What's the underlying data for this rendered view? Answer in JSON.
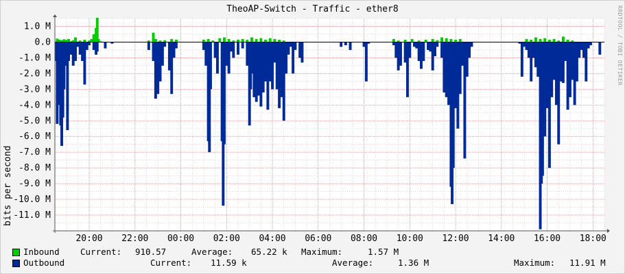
{
  "chart_data": {
    "type": "area",
    "title": "TheoAP-Switch - Traffic - ether8",
    "ylabel": "bits per second",
    "watermark": "RRDTOOL / TOBI OETIKER",
    "ylim": [
      -12000000,
      1500000
    ],
    "y_ticks": [
      {
        "value": 1000000,
        "label": "1.0 M"
      },
      {
        "value": 0,
        "label": "0.0"
      },
      {
        "value": -1000000,
        "label": "-1.0 M"
      },
      {
        "value": -2000000,
        "label": "-2.0 M"
      },
      {
        "value": -3000000,
        "label": "-3.0 M"
      },
      {
        "value": -4000000,
        "label": "-4.0 M"
      },
      {
        "value": -5000000,
        "label": "-5.0 M"
      },
      {
        "value": -6000000,
        "label": "-6.0 M"
      },
      {
        "value": -7000000,
        "label": "-7.0 M"
      },
      {
        "value": -8000000,
        "label": "-8.0 M"
      },
      {
        "value": -9000000,
        "label": "-9.0 M"
      },
      {
        "value": -10000000,
        "label": "-10.0 M"
      },
      {
        "value": -11000000,
        "label": "-11.0 M"
      }
    ],
    "x_range_hours": [
      18.5,
      42.5
    ],
    "x_ticks": [
      {
        "hour": 20,
        "label": "20:00"
      },
      {
        "hour": 22,
        "label": "22:00"
      },
      {
        "hour": 24,
        "label": "00:00"
      },
      {
        "hour": 26,
        "label": "02:00"
      },
      {
        "hour": 28,
        "label": "04:00"
      },
      {
        "hour": 30,
        "label": "06:00"
      },
      {
        "hour": 32,
        "label": "08:00"
      },
      {
        "hour": 34,
        "label": "10:00"
      },
      {
        "hour": 36,
        "label": "12:00"
      },
      {
        "hour": 38,
        "label": "14:00"
      },
      {
        "hour": 40,
        "label": "16:00"
      },
      {
        "hour": 42,
        "label": "18:00"
      }
    ],
    "grid": true,
    "series": [
      {
        "name": "Inbound",
        "color": "#00cc00",
        "points": [
          [
            18.6,
            0.22
          ],
          [
            18.7,
            0.15
          ],
          [
            18.8,
            0.12
          ],
          [
            18.9,
            0.18
          ],
          [
            19.0,
            0.14
          ],
          [
            19.1,
            0.2
          ],
          [
            19.2,
            0.05
          ],
          [
            19.3,
            0.12
          ],
          [
            19.4,
            0.3
          ],
          [
            19.6,
            0.1
          ],
          [
            19.8,
            0.15
          ],
          [
            20.0,
            0.1
          ],
          [
            20.1,
            0.2
          ],
          [
            20.2,
            0.5
          ],
          [
            20.3,
            0.9
          ],
          [
            20.35,
            1.55
          ],
          [
            20.4,
            0.2
          ],
          [
            20.5,
            0.05
          ],
          [
            22.6,
            0.1
          ],
          [
            22.8,
            0.6
          ],
          [
            22.9,
            0.2
          ],
          [
            23.1,
            0.1
          ],
          [
            23.3,
            0.12
          ],
          [
            23.6,
            0.2
          ],
          [
            23.8,
            0.15
          ],
          [
            25.0,
            0.15
          ],
          [
            25.2,
            0.2
          ],
          [
            25.4,
            0.1
          ],
          [
            25.7,
            0.25
          ],
          [
            25.9,
            0.3
          ],
          [
            26.1,
            0.2
          ],
          [
            26.3,
            0.1
          ],
          [
            26.5,
            0.15
          ],
          [
            26.7,
            0.2
          ],
          [
            26.9,
            0.15
          ],
          [
            27.1,
            0.3
          ],
          [
            27.3,
            0.2
          ],
          [
            27.5,
            0.25
          ],
          [
            27.7,
            0.15
          ],
          [
            27.9,
            0.25
          ],
          [
            28.1,
            0.2
          ],
          [
            28.3,
            0.15
          ],
          [
            28.5,
            0.1
          ],
          [
            33.3,
            0.2
          ],
          [
            33.5,
            0.1
          ],
          [
            33.8,
            0.15
          ],
          [
            34.1,
            0.2
          ],
          [
            34.4,
            0.1
          ],
          [
            34.7,
            0.15
          ],
          [
            35.0,
            0.2
          ],
          [
            35.2,
            0.12
          ],
          [
            35.4,
            0.3
          ],
          [
            35.6,
            0.25
          ],
          [
            35.8,
            0.2
          ],
          [
            36.0,
            0.15
          ],
          [
            36.2,
            0.2
          ],
          [
            39.1,
            0.2
          ],
          [
            39.3,
            0.15
          ],
          [
            39.5,
            0.3
          ],
          [
            39.7,
            0.2
          ],
          [
            39.9,
            0.25
          ],
          [
            40.1,
            0.15
          ],
          [
            40.3,
            0.2
          ],
          [
            40.5,
            0.1
          ],
          [
            40.7,
            0.35
          ],
          [
            40.9,
            0.15
          ],
          [
            41.1,
            0.1
          ]
        ]
      },
      {
        "name": "Outbound",
        "color": "#002a97",
        "points": [
          [
            18.55,
            -1.2
          ],
          [
            18.6,
            -5.2
          ],
          [
            18.65,
            -3.2
          ],
          [
            18.7,
            -4.0
          ],
          [
            18.75,
            -5.3
          ],
          [
            18.8,
            -6.6
          ],
          [
            18.85,
            -4.8
          ],
          [
            18.9,
            -3.0
          ],
          [
            18.95,
            -1.5
          ],
          [
            19.0,
            -1.0
          ],
          [
            19.05,
            -5.6
          ],
          [
            19.1,
            -1.2
          ],
          [
            19.2,
            -0.8
          ],
          [
            19.3,
            -1.5
          ],
          [
            19.4,
            -1.2
          ],
          [
            19.5,
            -0.3
          ],
          [
            19.6,
            -0.8
          ],
          [
            19.7,
            -1.2
          ],
          [
            19.8,
            -2.7
          ],
          [
            19.9,
            -0.5
          ],
          [
            20.0,
            -0.2
          ],
          [
            20.2,
            -0.5
          ],
          [
            20.3,
            -0.8
          ],
          [
            20.35,
            -0.6
          ],
          [
            20.7,
            -0.4
          ],
          [
            21.0,
            -0.1
          ],
          [
            22.6,
            -0.5
          ],
          [
            22.8,
            -1.2
          ],
          [
            22.9,
            -3.6
          ],
          [
            23.0,
            -3.3
          ],
          [
            23.1,
            -2.5
          ],
          [
            23.2,
            -1.5
          ],
          [
            23.3,
            -0.3
          ],
          [
            23.5,
            -1.8
          ],
          [
            23.6,
            -3.3
          ],
          [
            23.7,
            -1.0
          ],
          [
            23.8,
            -0.4
          ],
          [
            25.0,
            -0.5
          ],
          [
            25.1,
            -1.5
          ],
          [
            25.2,
            -6.3
          ],
          [
            25.25,
            -7.0
          ],
          [
            25.3,
            -3.0
          ],
          [
            25.5,
            -1.0
          ],
          [
            25.6,
            -2.0
          ],
          [
            25.8,
            -6.3
          ],
          [
            25.85,
            -10.4
          ],
          [
            25.9,
            -6.5
          ],
          [
            26.0,
            -1.5
          ],
          [
            26.1,
            -2.0
          ],
          [
            26.2,
            -0.6
          ],
          [
            26.3,
            -1.0
          ],
          [
            26.5,
            -0.8
          ],
          [
            26.7,
            -0.4
          ],
          [
            26.9,
            -1.5
          ],
          [
            27.0,
            -5.3
          ],
          [
            27.05,
            -3.0
          ],
          [
            27.1,
            -2.0
          ],
          [
            27.2,
            -3.5
          ],
          [
            27.3,
            -3.8
          ],
          [
            27.4,
            -3.4
          ],
          [
            27.5,
            -4.1
          ],
          [
            27.6,
            -3.2
          ],
          [
            27.7,
            -2.5
          ],
          [
            27.8,
            -4.3
          ],
          [
            27.9,
            -2.5
          ],
          [
            28.0,
            -3.0
          ],
          [
            28.1,
            -1.3
          ],
          [
            28.2,
            -3.0
          ],
          [
            28.3,
            -4.2
          ],
          [
            28.4,
            -3.5
          ],
          [
            28.5,
            -5.0
          ],
          [
            28.6,
            -2.0
          ],
          [
            28.7,
            -0.8
          ],
          [
            28.8,
            -0.3
          ],
          [
            28.9,
            -2.0
          ],
          [
            29.0,
            -0.5
          ],
          [
            29.2,
            -1.0
          ],
          [
            29.3,
            -1.3
          ],
          [
            31.0,
            -0.3
          ],
          [
            31.2,
            -0.2
          ],
          [
            31.4,
            -0.5
          ],
          [
            32.0,
            -0.3
          ],
          [
            32.1,
            -2.5
          ],
          [
            32.2,
            -0.1
          ],
          [
            33.3,
            -0.2
          ],
          [
            33.4,
            -1.0
          ],
          [
            33.5,
            -1.8
          ],
          [
            33.6,
            -1.5
          ],
          [
            33.8,
            -1.3
          ],
          [
            33.9,
            -3.5
          ],
          [
            34.0,
            -1.0
          ],
          [
            34.2,
            -0.3
          ],
          [
            34.3,
            -0.4
          ],
          [
            34.4,
            -1.2
          ],
          [
            34.5,
            -1.7
          ],
          [
            34.6,
            -1.2
          ],
          [
            34.8,
            -0.5
          ],
          [
            34.9,
            -0.6
          ],
          [
            35.0,
            -1.8
          ],
          [
            35.1,
            -0.9
          ],
          [
            35.2,
            -0.3
          ],
          [
            35.4,
            -1.0
          ],
          [
            35.5,
            -3.2
          ],
          [
            35.6,
            -3.5
          ],
          [
            35.7,
            -4.0
          ],
          [
            35.8,
            -9.2
          ],
          [
            35.85,
            -10.3
          ],
          [
            35.9,
            -8.0
          ],
          [
            36.0,
            -4.2
          ],
          [
            36.1,
            -5.5
          ],
          [
            36.2,
            -3.3
          ],
          [
            36.3,
            -1.5
          ],
          [
            36.4,
            -7.4
          ],
          [
            36.5,
            -2.2
          ],
          [
            36.6,
            -1.0
          ],
          [
            36.7,
            -0.3
          ],
          [
            38.8,
            -0.1
          ],
          [
            38.9,
            -2.2
          ],
          [
            39.0,
            -0.3
          ],
          [
            39.1,
            -0.5
          ],
          [
            39.2,
            -1.0
          ],
          [
            39.3,
            -2.5
          ],
          [
            39.4,
            -1.0
          ],
          [
            39.5,
            -1.6
          ],
          [
            39.6,
            -2.2
          ],
          [
            39.7,
            -11.9
          ],
          [
            39.75,
            -9.0
          ],
          [
            39.8,
            -8.5
          ],
          [
            39.9,
            -6.0
          ],
          [
            40.0,
            -4.2
          ],
          [
            40.1,
            -8.0
          ],
          [
            40.2,
            -3.5
          ],
          [
            40.3,
            -2.4
          ],
          [
            40.4,
            -4.0
          ],
          [
            40.5,
            -6.5
          ],
          [
            40.6,
            -2.5
          ],
          [
            40.7,
            -2.6
          ],
          [
            40.8,
            -1.2
          ],
          [
            40.9,
            -4.3
          ],
          [
            41.0,
            -3.5
          ],
          [
            41.1,
            -2.4
          ],
          [
            41.2,
            -4.0
          ],
          [
            41.3,
            -2.5
          ],
          [
            41.4,
            -1.0
          ],
          [
            41.5,
            -0.5
          ],
          [
            41.6,
            -1.0
          ],
          [
            41.7,
            -2.5
          ],
          [
            41.8,
            -0.4
          ],
          [
            41.9,
            -0.2
          ],
          [
            42.3,
            -0.8
          ]
        ]
      }
    ]
  },
  "legend": {
    "inbound": {
      "label": "Inbound",
      "current_label": "Current:",
      "current": "910.57",
      "average_label": "Average:",
      "average": "65.22 k",
      "maximum_label": "Maximum:",
      "maximum": "1.57 M"
    },
    "outbound": {
      "label": "Outbound",
      "current_label": "Current:",
      "current": "11.59 k",
      "average_label": "Average:",
      "average": "1.36 M",
      "maximum_label": "Maximum:",
      "maximum": "11.91 M"
    }
  }
}
